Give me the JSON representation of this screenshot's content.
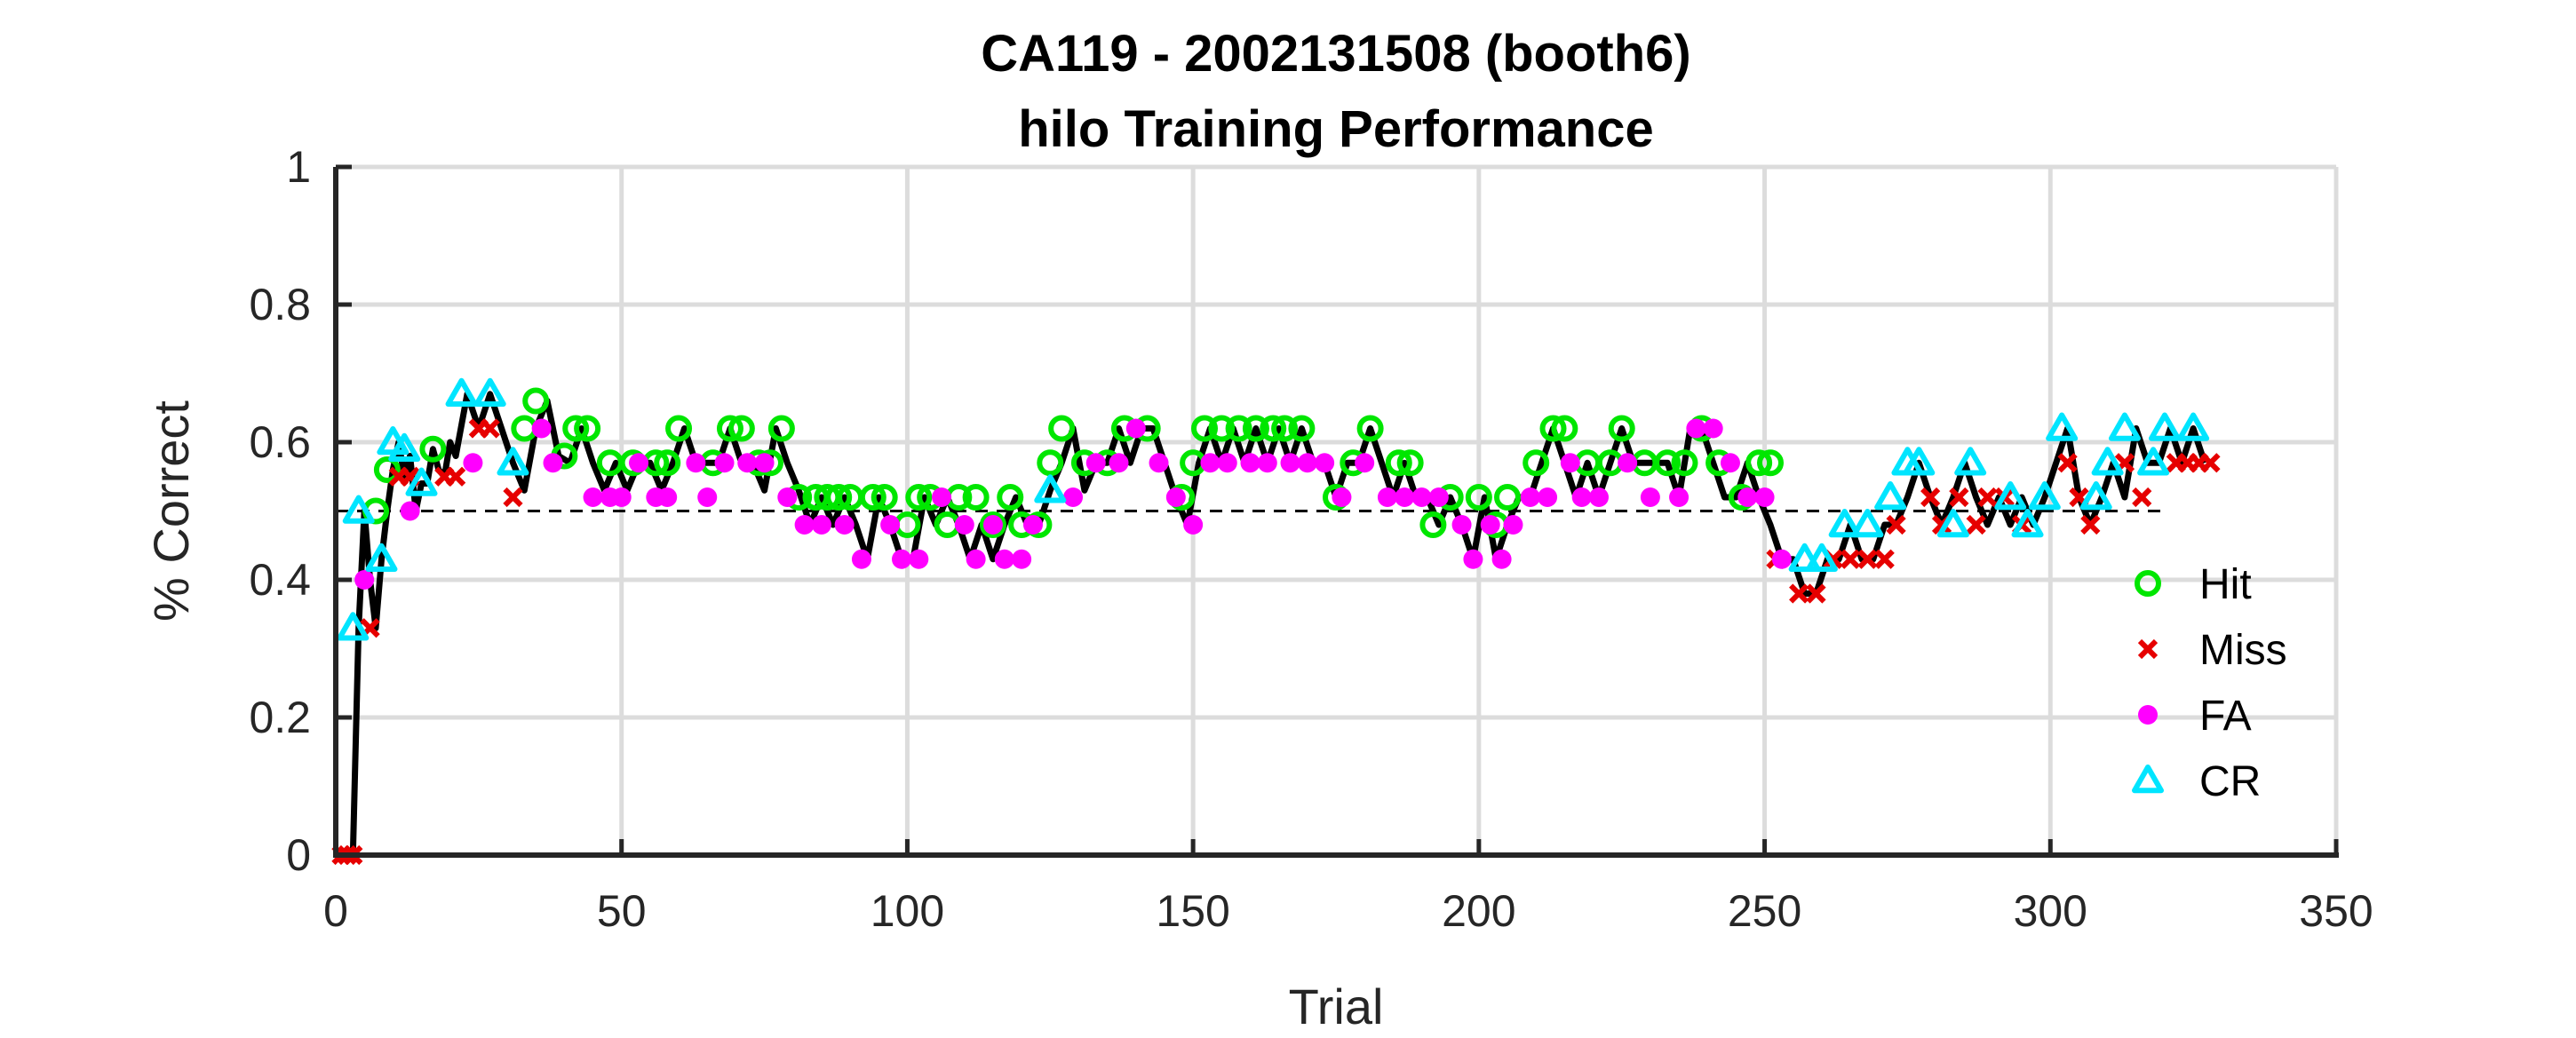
{
  "chart_data": {
    "type": "scatter",
    "title": [
      "CA119 - 2002131508 (booth6)",
      "hilo Training Performance"
    ],
    "xlabel": "Trial",
    "ylabel": "% Correct",
    "xlim": [
      0,
      350
    ],
    "ylim": [
      0,
      1
    ],
    "xticks": [
      0,
      50,
      100,
      150,
      200,
      250,
      300,
      350
    ],
    "yticks": [
      0,
      0.2,
      0.4,
      0.6,
      0.8,
      1
    ],
    "ytick_labels": [
      "0",
      "0.2",
      "0.4",
      "0.6",
      "0.8",
      "1"
    ],
    "grid": true,
    "legend_position": "right",
    "chance_level": 0.5,
    "colors": {
      "line": "#000000",
      "hit": "#00e600",
      "miss": "#e60000",
      "fa": "#ff00ff",
      "cr": "#00e5ff",
      "chance": "#000000"
    },
    "line": {
      "x": [
        1,
        2,
        3,
        4,
        5,
        6,
        7,
        8,
        9,
        10,
        11,
        12,
        13,
        14,
        15,
        16,
        17,
        18,
        19,
        20,
        21,
        23,
        25,
        27,
        29,
        31,
        33,
        35,
        37,
        39,
        41,
        43,
        45,
        47,
        49,
        51,
        53,
        55,
        57,
        59,
        61,
        63,
        65,
        67,
        69,
        71,
        73,
        75,
        77,
        79,
        81,
        83,
        85,
        87,
        89,
        91,
        93,
        95,
        97,
        99,
        101,
        103,
        105,
        107,
        109,
        111,
        113,
        115,
        117,
        119,
        121,
        123,
        125,
        127,
        129,
        131,
        133,
        135,
        137,
        139,
        141,
        143,
        145,
        147,
        149,
        151,
        153,
        155,
        157,
        159,
        161,
        163,
        165,
        167,
        169,
        171,
        173,
        175,
        177,
        179,
        181,
        183,
        185,
        187,
        189,
        191,
        193,
        195,
        197,
        199,
        201,
        203,
        205,
        207,
        209,
        211,
        213,
        215,
        217,
        219,
        221,
        223,
        225,
        227,
        229,
        231,
        233,
        235,
        237,
        239,
        241,
        243,
        245,
        247,
        249,
        251,
        253,
        255,
        257,
        259,
        261,
        263,
        265,
        267,
        269,
        271,
        273,
        275,
        277,
        279,
        281,
        283,
        285,
        287,
        289,
        291,
        293,
        295,
        297,
        299,
        301,
        303,
        305,
        307,
        309,
        311,
        313,
        315,
        317,
        319,
        321,
        323,
        325,
        327
      ],
      "y": [
        0,
        0,
        0,
        0.33,
        0.5,
        0.4,
        0.33,
        0.43,
        0.5,
        0.56,
        0.6,
        0.55,
        0.58,
        0.5,
        0.54,
        0.54,
        0.59,
        0.56,
        0.55,
        0.6,
        0.58,
        0.67,
        0.62,
        0.67,
        0.62,
        0.57,
        0.53,
        0.62,
        0.66,
        0.58,
        0.57,
        0.62,
        0.57,
        0.53,
        0.57,
        0.53,
        0.57,
        0.57,
        0.53,
        0.57,
        0.62,
        0.57,
        0.57,
        0.57,
        0.62,
        0.57,
        0.57,
        0.53,
        0.62,
        0.57,
        0.53,
        0.48,
        0.52,
        0.48,
        0.52,
        0.48,
        0.43,
        0.52,
        0.48,
        0.43,
        0.43,
        0.52,
        0.48,
        0.52,
        0.48,
        0.43,
        0.48,
        0.43,
        0.48,
        0.52,
        0.48,
        0.48,
        0.53,
        0.57,
        0.62,
        0.53,
        0.57,
        0.57,
        0.62,
        0.57,
        0.62,
        0.62,
        0.57,
        0.52,
        0.48,
        0.57,
        0.62,
        0.57,
        0.62,
        0.57,
        0.62,
        0.57,
        0.62,
        0.57,
        0.62,
        0.57,
        0.57,
        0.52,
        0.57,
        0.57,
        0.62,
        0.57,
        0.52,
        0.57,
        0.52,
        0.52,
        0.48,
        0.52,
        0.48,
        0.43,
        0.52,
        0.43,
        0.48,
        0.52,
        0.52,
        0.57,
        0.62,
        0.57,
        0.52,
        0.57,
        0.52,
        0.57,
        0.62,
        0.57,
        0.57,
        0.57,
        0.57,
        0.52,
        0.62,
        0.62,
        0.57,
        0.52,
        0.52,
        0.57,
        0.52,
        0.48,
        0.43,
        0.43,
        0.38,
        0.38,
        0.43,
        0.43,
        0.48,
        0.43,
        0.43,
        0.48,
        0.48,
        0.52,
        0.57,
        0.52,
        0.48,
        0.52,
        0.57,
        0.52,
        0.48,
        0.52,
        0.48,
        0.52,
        0.48,
        0.52,
        0.57,
        0.62,
        0.52,
        0.48,
        0.52,
        0.57,
        0.52,
        0.62,
        0.57,
        0.57,
        0.62,
        0.57,
        0.62,
        0.57
      ]
    },
    "series": [
      {
        "name": "Hit",
        "marker": "circle",
        "x": [
          7,
          9,
          17,
          33,
          35,
          40,
          42,
          44,
          48,
          52,
          56,
          58,
          60,
          66,
          69,
          71,
          74,
          76,
          78,
          81,
          84,
          86,
          88,
          90,
          94,
          96,
          100,
          102,
          104,
          107,
          109,
          112,
          115,
          118,
          120,
          123,
          125,
          127,
          131,
          135,
          138,
          142,
          148,
          150,
          152,
          155,
          158,
          161,
          164,
          166,
          169,
          175,
          178,
          181,
          186,
          188,
          192,
          195,
          200,
          203,
          205,
          210,
          213,
          215,
          219,
          223,
          225,
          229,
          233,
          236,
          239,
          242,
          246,
          249,
          251
        ],
        "y": [
          0.5,
          0.56,
          0.59,
          0.62,
          0.66,
          0.58,
          0.62,
          0.62,
          0.57,
          0.57,
          0.57,
          0.57,
          0.62,
          0.57,
          0.62,
          0.62,
          0.57,
          0.57,
          0.62,
          0.52,
          0.52,
          0.52,
          0.52,
          0.52,
          0.52,
          0.52,
          0.48,
          0.52,
          0.52,
          0.48,
          0.52,
          0.52,
          0.48,
          0.52,
          0.48,
          0.48,
          0.57,
          0.62,
          0.57,
          0.57,
          0.62,
          0.62,
          0.52,
          0.57,
          0.62,
          0.62,
          0.62,
          0.62,
          0.62,
          0.62,
          0.62,
          0.52,
          0.57,
          0.62,
          0.57,
          0.57,
          0.48,
          0.52,
          0.52,
          0.48,
          0.52,
          0.57,
          0.62,
          0.62,
          0.57,
          0.57,
          0.62,
          0.57,
          0.57,
          0.57,
          0.62,
          0.57,
          0.52,
          0.57,
          0.57
        ]
      },
      {
        "name": "Miss",
        "marker": "x",
        "x": [
          1,
          2,
          3,
          6,
          11,
          13,
          19,
          21,
          25,
          27,
          31,
          252,
          256,
          259,
          262,
          265,
          268,
          271,
          273,
          279,
          281,
          284,
          287,
          289,
          292,
          295,
          303,
          305,
          307,
          313,
          316,
          322,
          324,
          326,
          328
        ],
        "y": [
          0,
          0,
          0,
          0.33,
          0.55,
          0.55,
          0.55,
          0.55,
          0.62,
          0.62,
          0.52,
          0.43,
          0.38,
          0.38,
          0.43,
          0.43,
          0.43,
          0.43,
          0.48,
          0.52,
          0.48,
          0.52,
          0.48,
          0.52,
          0.52,
          0.48,
          0.57,
          0.52,
          0.48,
          0.57,
          0.52,
          0.57,
          0.57,
          0.57,
          0.57
        ]
      },
      {
        "name": "FA",
        "marker": "dot",
        "x": [
          5,
          13,
          24,
          36,
          38,
          45,
          48,
          50,
          53,
          56,
          58,
          63,
          65,
          68,
          72,
          75,
          79,
          82,
          85,
          89,
          92,
          97,
          99,
          102,
          106,
          110,
          112,
          115,
          117,
          120,
          122,
          129,
          133,
          137,
          140,
          144,
          147,
          150,
          153,
          156,
          160,
          163,
          167,
          170,
          173,
          176,
          180,
          184,
          187,
          190,
          193,
          197,
          199,
          202,
          204,
          206,
          209,
          212,
          216,
          218,
          221,
          226,
          230,
          235,
          238,
          241,
          244,
          247,
          250,
          253
        ],
        "y": [
          0.4,
          0.5,
          0.57,
          0.62,
          0.57,
          0.52,
          0.52,
          0.52,
          0.57,
          0.52,
          0.52,
          0.57,
          0.52,
          0.57,
          0.57,
          0.57,
          0.52,
          0.48,
          0.48,
          0.48,
          0.43,
          0.48,
          0.43,
          0.43,
          0.52,
          0.48,
          0.43,
          0.48,
          0.43,
          0.43,
          0.48,
          0.52,
          0.57,
          0.57,
          0.62,
          0.57,
          0.52,
          0.48,
          0.57,
          0.57,
          0.57,
          0.57,
          0.57,
          0.57,
          0.57,
          0.52,
          0.57,
          0.52,
          0.52,
          0.52,
          0.52,
          0.48,
          0.43,
          0.48,
          0.43,
          0.48,
          0.52,
          0.52,
          0.57,
          0.52,
          0.52,
          0.57,
          0.52,
          0.52,
          0.62,
          0.62,
          0.57,
          0.52,
          0.52,
          0.43
        ]
      },
      {
        "name": "CR",
        "marker": "triangle",
        "x": [
          3,
          4,
          8,
          10,
          12,
          15,
          22,
          27,
          31,
          125,
          257,
          260,
          264,
          268,
          272,
          275,
          277,
          283,
          286,
          293,
          296,
          299,
          302,
          308,
          310,
          313,
          318,
          320,
          325
        ],
        "y": [
          0.33,
          0.5,
          0.43,
          0.6,
          0.59,
          0.54,
          0.67,
          0.67,
          0.57,
          0.53,
          0.43,
          0.43,
          0.48,
          0.48,
          0.52,
          0.57,
          0.57,
          0.48,
          0.57,
          0.52,
          0.48,
          0.52,
          0.62,
          0.52,
          0.57,
          0.62,
          0.57,
          0.62,
          0.62
        ]
      }
    ]
  }
}
